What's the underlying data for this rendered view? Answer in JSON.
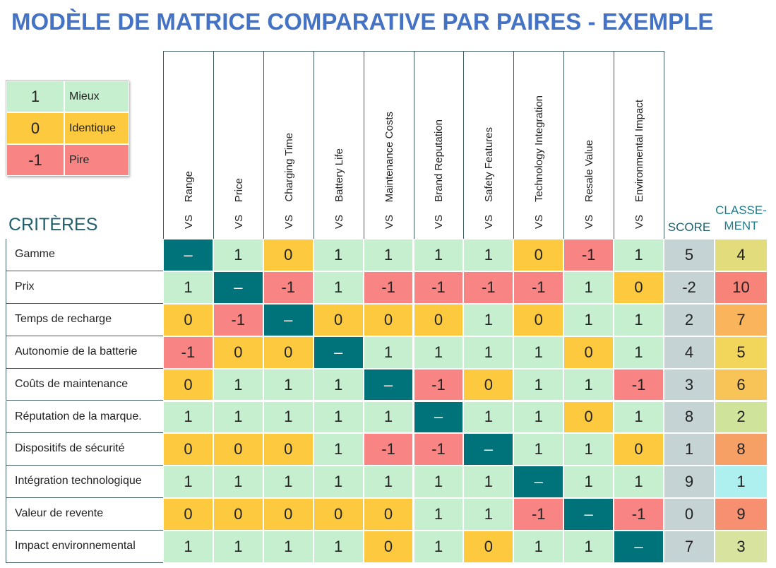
{
  "title": "MODÈLE DE MATRICE COMPARATIVE PAR PAIRES - EXEMPLE",
  "legend": [
    {
      "value": "1",
      "label": "Mieux",
      "color": "#c6efd0"
    },
    {
      "value": "0",
      "label": "Identique",
      "color": "#fdc93f"
    },
    {
      "value": "-1",
      "label": "Pire",
      "color": "#f88484"
    }
  ],
  "diagonal_color": "#00737a",
  "criteria_heading": "CRITÈRES",
  "vs_label": "VS",
  "columns": [
    "Range",
    "Price",
    "Charging Time",
    "Battery Life",
    "Maintenance Costs",
    "Brand Reputation",
    "Safety Features",
    "Technology Integration",
    "Resale Value",
    "Environmental Impact"
  ],
  "score_heading": "SCORE",
  "rank_heading": [
    "CLASSE-",
    "MENT"
  ],
  "score_color": "#c6d3d5",
  "rows": [
    {
      "label": "Gamme",
      "cells": [
        "–",
        "1",
        "0",
        "1",
        "1",
        "1",
        "1",
        "0",
        "-1",
        "1"
      ],
      "score": 5,
      "rank": 4,
      "rank_color": "#e2dc7c"
    },
    {
      "label": "Prix",
      "cells": [
        "1",
        "–",
        "-1",
        "1",
        "-1",
        "-1",
        "-1",
        "-1",
        "1",
        "0"
      ],
      "score": -2,
      "rank": 10,
      "rank_color": "#f88379"
    },
    {
      "label": "Temps de recharge",
      "cells": [
        "0",
        "-1",
        "–",
        "0",
        "0",
        "0",
        "1",
        "0",
        "1",
        "1"
      ],
      "score": 2,
      "rank": 7,
      "rank_color": "#f9b45c"
    },
    {
      "label": "Autonomie de la batterie",
      "cells": [
        "-1",
        "0",
        "0",
        "–",
        "1",
        "1",
        "1",
        "1",
        "0",
        "1"
      ],
      "score": 4,
      "rank": 5,
      "rank_color": "#f2d65c"
    },
    {
      "label": "Coûts de maintenance",
      "cells": [
        "0",
        "1",
        "1",
        "1",
        "–",
        "-1",
        "0",
        "1",
        "1",
        "-1"
      ],
      "score": 3,
      "rank": 6,
      "rank_color": "#f8c458"
    },
    {
      "label": "Réputation de la marque.",
      "cells": [
        "1",
        "1",
        "1",
        "1",
        "1",
        "–",
        "1",
        "1",
        "0",
        "1"
      ],
      "score": 8,
      "rank": 2,
      "rank_color": "#cfe39b"
    },
    {
      "label": "Dispositifs de sécurité",
      "cells": [
        "0",
        "0",
        "0",
        "1",
        "-1",
        "-1",
        "–",
        "1",
        "1",
        "0"
      ],
      "score": 1,
      "rank": 8,
      "rank_color": "#f7a066"
    },
    {
      "label": "Intégration technologique",
      "cells": [
        "1",
        "1",
        "1",
        "1",
        "1",
        "1",
        "1",
        "–",
        "1",
        "1"
      ],
      "score": 9,
      "rank": 1,
      "rank_color": "#aef0ef"
    },
    {
      "label": "Valeur de revente",
      "cells": [
        "0",
        "0",
        "0",
        "0",
        "0",
        "1",
        "1",
        "-1",
        "–",
        "-1"
      ],
      "score": 0,
      "rank": 9,
      "rank_color": "#f79070"
    },
    {
      "label": "Impact environnemental",
      "cells": [
        "1",
        "1",
        "1",
        "1",
        "0",
        "1",
        "0",
        "1",
        "1",
        "–"
      ],
      "score": 7,
      "rank": 3,
      "rank_color": "#d8e3a0"
    }
  ]
}
